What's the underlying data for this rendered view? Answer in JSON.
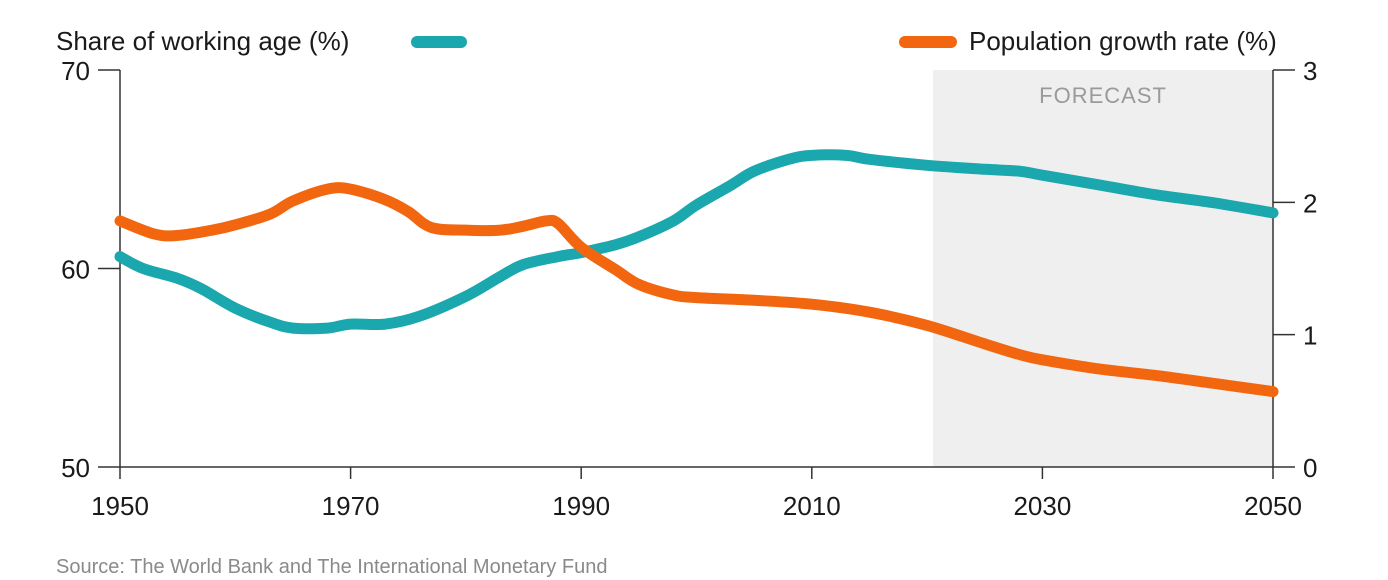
{
  "chart_data": {
    "type": "line",
    "title": "",
    "source": "Source: The World Bank and The International Monetary Fund",
    "forecast_label": "FORECAST",
    "forecast_range": [
      2020,
      2050
    ],
    "xlim": [
      1950,
      2050
    ],
    "x_ticks": [
      1950,
      1970,
      1990,
      2010,
      2030,
      2050
    ],
    "left_axis": {
      "label": "Share of working age (%)",
      "ylim": [
        50,
        70
      ],
      "ticks": [
        50,
        60,
        70
      ]
    },
    "right_axis": {
      "label": "Population growth rate (%)",
      "ylim": [
        0,
        3
      ],
      "ticks": [
        0,
        1,
        2,
        3
      ]
    },
    "legend_placement": "top",
    "grid": false,
    "series": [
      {
        "name": "Share of working age (%)",
        "axis": "left",
        "color": "#1aa7ad",
        "points": [
          [
            1950,
            60.6
          ],
          [
            1952,
            60.0
          ],
          [
            1955,
            59.5
          ],
          [
            1957,
            59.0
          ],
          [
            1960,
            58.0
          ],
          [
            1963,
            57.3
          ],
          [
            1965,
            57.0
          ],
          [
            1968,
            57.0
          ],
          [
            1970,
            57.2
          ],
          [
            1973,
            57.2
          ],
          [
            1976,
            57.6
          ],
          [
            1980,
            58.6
          ],
          [
            1983,
            59.6
          ],
          [
            1985,
            60.2
          ],
          [
            1988,
            60.6
          ],
          [
            1990,
            60.8
          ],
          [
            1993,
            61.2
          ],
          [
            1995,
            61.6
          ],
          [
            1998,
            62.4
          ],
          [
            2000,
            63.2
          ],
          [
            2003,
            64.2
          ],
          [
            2005,
            64.9
          ],
          [
            2008,
            65.5
          ],
          [
            2010,
            65.7
          ],
          [
            2013,
            65.7
          ],
          [
            2015,
            65.5
          ],
          [
            2020,
            65.2
          ],
          [
            2025,
            65.0
          ],
          [
            2028,
            64.9
          ],
          [
            2030,
            64.7
          ],
          [
            2035,
            64.2
          ],
          [
            2040,
            63.7
          ],
          [
            2045,
            63.3
          ],
          [
            2050,
            62.8
          ]
        ]
      },
      {
        "name": "Population growth rate (%)",
        "axis": "right",
        "color": "#f2660f",
        "points": [
          [
            1950,
            1.86
          ],
          [
            1953,
            1.76
          ],
          [
            1955,
            1.75
          ],
          [
            1958,
            1.79
          ],
          [
            1960,
            1.83
          ],
          [
            1963,
            1.91
          ],
          [
            1965,
            2.01
          ],
          [
            1968,
            2.1
          ],
          [
            1970,
            2.1
          ],
          [
            1973,
            2.02
          ],
          [
            1975,
            1.93
          ],
          [
            1977,
            1.81
          ],
          [
            1980,
            1.79
          ],
          [
            1983,
            1.79
          ],
          [
            1985,
            1.82
          ],
          [
            1987,
            1.86
          ],
          [
            1988,
            1.84
          ],
          [
            1990,
            1.66
          ],
          [
            1993,
            1.49
          ],
          [
            1995,
            1.38
          ],
          [
            1998,
            1.3
          ],
          [
            2000,
            1.28
          ],
          [
            2005,
            1.26
          ],
          [
            2010,
            1.23
          ],
          [
            2015,
            1.17
          ],
          [
            2020,
            1.07
          ],
          [
            2025,
            0.93
          ],
          [
            2028,
            0.85
          ],
          [
            2030,
            0.81
          ],
          [
            2035,
            0.74
          ],
          [
            2040,
            0.69
          ],
          [
            2045,
            0.63
          ],
          [
            2050,
            0.57
          ]
        ]
      }
    ]
  }
}
